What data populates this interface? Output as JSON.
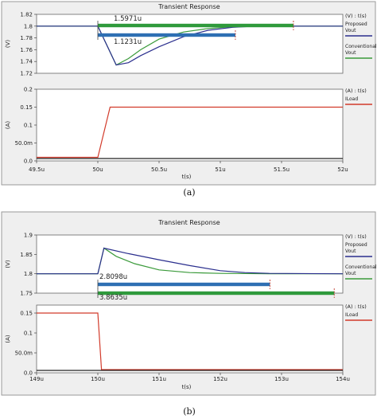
{
  "figures": [
    {
      "title": "Transient Response",
      "caption": "(a)",
      "x_axis": {
        "label": "t(s)",
        "ticks": [
          "49.5u",
          "50u",
          "50.5u",
          "51u",
          "51.5u",
          "52u"
        ]
      },
      "top_panel": {
        "unit_header": "(V) : t(s)",
        "ylabel": "(V)",
        "ticks": [
          "1.82",
          "1.8",
          "1.78",
          "1.76",
          "1.74",
          "1.72"
        ],
        "legend": [
          {
            "name": "Proposed\nVout",
            "color": "#2b2f8e"
          },
          {
            "name": "Conventional\nVout",
            "color": "#3a9a3a"
          }
        ],
        "annotations": [
          "1.5971u",
          "1.1231u"
        ]
      },
      "bottom_panel": {
        "unit_header": "(A) : t(s)",
        "ylabel": "(A)",
        "ticks": [
          "0.2",
          "0.15",
          "0.1",
          "50.0m",
          "0.0"
        ],
        "legend": [
          {
            "name": "ILoad",
            "color": "#d23a2a"
          }
        ]
      }
    },
    {
      "title": "Transient Response",
      "caption": "(b)",
      "x_axis": {
        "label": "t(s)",
        "ticks": [
          "149u",
          "150u",
          "151u",
          "152u",
          "153u",
          "154u"
        ]
      },
      "top_panel": {
        "unit_header": "(V) : t(s)",
        "ylabel": "(V)",
        "ticks": [
          "1.9",
          "1.85",
          "1.8",
          "1.75"
        ],
        "legend": [
          {
            "name": "Proposed\nVout",
            "color": "#2b2f8e"
          },
          {
            "name": "Conventional\nVout",
            "color": "#3a9a3a"
          }
        ],
        "annotations": [
          "2.8098u",
          "3.8635u"
        ]
      },
      "bottom_panel": {
        "unit_header": "(A) : t(s)",
        "ylabel": "(A)",
        "ticks": [
          "0.15",
          "0.1",
          "50.0m",
          "0.0"
        ],
        "legend": [
          {
            "name": "ILoad",
            "color": "#d23a2a"
          }
        ]
      }
    }
  ],
  "chart_data": [
    {
      "type": "line",
      "title": "Transient Response",
      "xlabel": "t(s)",
      "ylabel": "(V)",
      "xlim": [
        49.5,
        52.0
      ],
      "ylim": [
        1.72,
        1.82
      ],
      "series": [
        {
          "name": "Proposed Vout",
          "x": [
            49.5,
            50.0,
            50.08,
            50.15,
            50.25,
            50.35,
            50.5,
            50.7,
            50.9,
            51.1,
            51.3,
            52.0
          ],
          "values": [
            1.8,
            1.8,
            1.765,
            1.734,
            1.738,
            1.75,
            1.765,
            1.782,
            1.793,
            1.798,
            1.8,
            1.8
          ]
        },
        {
          "name": "Conventional Vout",
          "x": [
            49.5,
            50.0,
            50.08,
            50.15,
            50.25,
            50.35,
            50.5,
            50.7,
            50.9,
            51.1,
            51.6,
            52.0
          ],
          "values": [
            1.8,
            1.8,
            1.765,
            1.734,
            1.745,
            1.76,
            1.778,
            1.79,
            1.796,
            1.799,
            1.8,
            1.8
          ]
        }
      ],
      "annotations": [
        {
          "label": "1.5971u",
          "x_start": 50.0,
          "x_end": 51.597
        },
        {
          "label": "1.1231u",
          "x_start": 50.0,
          "x_end": 51.123
        }
      ]
    },
    {
      "type": "line",
      "title": "Transient Response",
      "xlabel": "t(s)",
      "ylabel": "(A)",
      "xlim": [
        49.5,
        52.0
      ],
      "ylim": [
        0.0,
        0.2
      ],
      "series": [
        {
          "name": "ILoad",
          "x": [
            49.5,
            50.0,
            50.1,
            52.0
          ],
          "values": [
            0.01,
            0.01,
            0.15,
            0.15
          ]
        }
      ]
    },
    {
      "type": "line",
      "title": "Transient Response",
      "xlabel": "t(s)",
      "ylabel": "(V)",
      "xlim": [
        149.0,
        154.0
      ],
      "ylim": [
        1.75,
        1.9
      ],
      "series": [
        {
          "name": "Proposed Vout",
          "x": [
            149,
            150,
            150.1,
            150.5,
            151,
            151.5,
            152,
            152.4,
            152.8,
            154
          ],
          "values": [
            1.8,
            1.8,
            1.866,
            1.852,
            1.836,
            1.821,
            1.808,
            1.803,
            1.801,
            1.8
          ]
        },
        {
          "name": "Conventional Vout",
          "x": [
            149,
            150,
            150.1,
            150.3,
            150.6,
            151,
            151.5,
            152,
            152.8,
            154
          ],
          "values": [
            1.8,
            1.8,
            1.866,
            1.845,
            1.826,
            1.81,
            1.803,
            1.801,
            1.8,
            1.8
          ]
        }
      ],
      "annotations": [
        {
          "label": "2.8098u",
          "x_start": 150.0,
          "x_end": 152.81
        },
        {
          "label": "3.8635u",
          "x_start": 150.0,
          "x_end": 153.86
        }
      ]
    },
    {
      "type": "line",
      "title": "Transient Response",
      "xlabel": "t(s)",
      "ylabel": "(A)",
      "xlim": [
        149.0,
        154.0
      ],
      "ylim": [
        0.0,
        0.17
      ],
      "series": [
        {
          "name": "ILoad",
          "x": [
            149,
            150,
            150.06,
            154
          ],
          "values": [
            0.15,
            0.15,
            0.008,
            0.008
          ]
        }
      ]
    }
  ]
}
